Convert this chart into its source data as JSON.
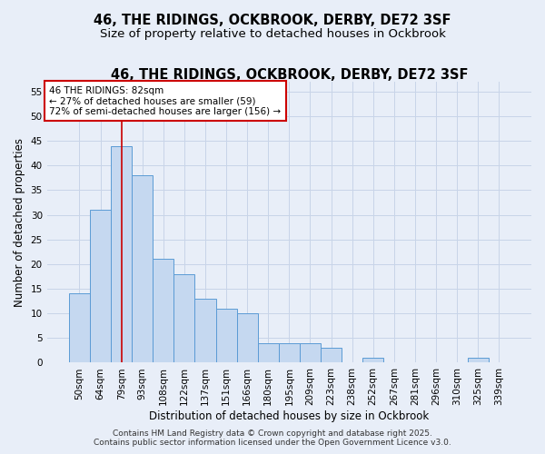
{
  "title": "46, THE RIDINGS, OCKBROOK, DERBY, DE72 3SF",
  "subtitle": "Size of property relative to detached houses in Ockbrook",
  "xlabel": "Distribution of detached houses by size in Ockbrook",
  "ylabel": "Number of detached properties",
  "categories": [
    "50sqm",
    "64sqm",
    "79sqm",
    "93sqm",
    "108sqm",
    "122sqm",
    "137sqm",
    "151sqm",
    "166sqm",
    "180sqm",
    "195sqm",
    "209sqm",
    "223sqm",
    "238sqm",
    "252sqm",
    "267sqm",
    "281sqm",
    "296sqm",
    "310sqm",
    "325sqm",
    "339sqm"
  ],
  "values": [
    14,
    31,
    44,
    38,
    21,
    18,
    13,
    11,
    10,
    4,
    4,
    4,
    3,
    0,
    1,
    0,
    0,
    0,
    0,
    1,
    0
  ],
  "bar_color": "#c5d8f0",
  "bar_edge_color": "#5b9bd5",
  "grid_color": "#c8d4e8",
  "background_color": "#e8eef8",
  "red_line_x": 2.0,
  "annotation_line1": "46 THE RIDINGS: 82sqm",
  "annotation_line2": "← 27% of detached houses are smaller (59)",
  "annotation_line3": "72% of semi-detached houses are larger (156) →",
  "annotation_box_color": "#ffffff",
  "annotation_edge_color": "#cc0000",
  "ylim": [
    0,
    57
  ],
  "yticks": [
    0,
    5,
    10,
    15,
    20,
    25,
    30,
    35,
    40,
    45,
    50,
    55
  ],
  "footer": "Contains HM Land Registry data © Crown copyright and database right 2025.\nContains public sector information licensed under the Open Government Licence v3.0.",
  "title_fontsize": 10.5,
  "subtitle_fontsize": 9.5,
  "axis_label_fontsize": 8.5,
  "tick_fontsize": 7.5,
  "annotation_fontsize": 7.5,
  "footer_fontsize": 6.5
}
